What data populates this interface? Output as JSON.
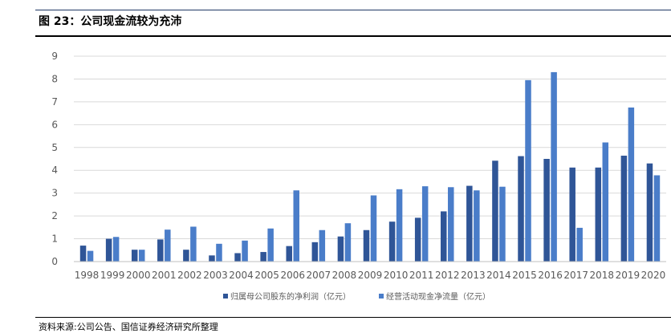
{
  "title": "图 23：公司现金流较为充沛",
  "source": "资料来源:公司公告、国信证券经济研究所整理",
  "colors": {
    "series1": "#2f5597",
    "series2": "#4a7dc9",
    "gridline": "#d9d9d9",
    "axis": "#bfbfbf"
  },
  "chart_data": {
    "type": "bar",
    "title": "图 23：公司现金流较为充沛",
    "xlabel": "",
    "ylabel": "",
    "ylim": [
      0,
      9
    ],
    "yticks": [
      0,
      1,
      2,
      3,
      4,
      5,
      6,
      7,
      8,
      9
    ],
    "grid": true,
    "legend": "bottom",
    "categories": [
      "1998",
      "1999",
      "2000",
      "2001",
      "2002",
      "2003",
      "2004",
      "2005",
      "2006",
      "2007",
      "2008",
      "2009",
      "2010",
      "2011",
      "2012",
      "2013",
      "2014",
      "2015",
      "2016",
      "2017",
      "2018",
      "2019",
      "2020"
    ],
    "series": [
      {
        "name": "归属母公司股东的净利润（亿元）",
        "values": [
          0.7,
          1.0,
          0.52,
          0.97,
          0.52,
          0.27,
          0.37,
          0.42,
          0.68,
          0.85,
          1.1,
          1.38,
          1.75,
          1.92,
          2.2,
          3.32,
          4.42,
          4.62,
          4.5,
          4.12,
          4.12,
          4.64,
          4.3
        ]
      },
      {
        "name": "经营活动现金净流量（亿元）",
        "values": [
          0.47,
          1.08,
          0.52,
          1.4,
          1.53,
          0.78,
          0.92,
          1.45,
          3.12,
          1.38,
          1.68,
          2.9,
          3.17,
          3.3,
          3.26,
          3.12,
          3.28,
          7.95,
          8.3,
          1.48,
          5.22,
          6.75,
          3.78
        ]
      }
    ]
  }
}
